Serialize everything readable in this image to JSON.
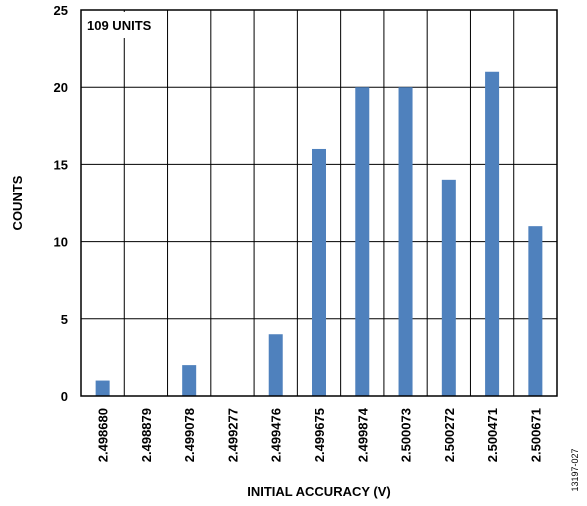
{
  "chart_data": {
    "type": "bar",
    "categories": [
      "2.498680",
      "2.498879",
      "2.499078",
      "2.499277",
      "2.499476",
      "2.499675",
      "2.499874",
      "2.500073",
      "2.500272",
      "2.500471",
      "2.500671"
    ],
    "values": [
      1,
      0,
      2,
      0,
      4,
      16,
      20,
      20,
      14,
      21,
      11
    ],
    "xlabel": "INITIAL ACCURACY (V)",
    "ylabel": "COUNTS",
    "ylim": [
      0,
      25
    ],
    "yticks": [
      0,
      5,
      10,
      15,
      20,
      25
    ],
    "grid": true,
    "legend": "none",
    "annotation": "109 UNITS",
    "figure_id": "13197-027",
    "colors": {
      "bar": "#4F81BD",
      "grid": "#000000",
      "frame": "#000000"
    }
  }
}
